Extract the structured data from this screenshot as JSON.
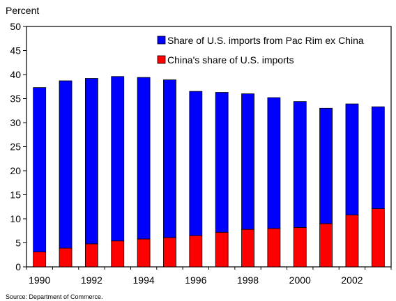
{
  "chart_data": {
    "type": "bar",
    "stacked": true,
    "title": "",
    "xlabel": "",
    "ylabel": "Percent",
    "ylim": [
      0,
      50
    ],
    "y_ticks": [
      0,
      5,
      10,
      15,
      20,
      25,
      30,
      35,
      40,
      45,
      50
    ],
    "x": [
      1990,
      1991,
      1992,
      1993,
      1994,
      1995,
      1996,
      1997,
      1998,
      1999,
      2000,
      2001,
      2002,
      2003
    ],
    "x_tick_labels": [
      "1990",
      "1992",
      "1994",
      "1996",
      "1998",
      "2000",
      "2002"
    ],
    "x_tick_years": [
      1990,
      1992,
      1994,
      1996,
      1998,
      2000,
      2002
    ],
    "series": [
      {
        "name": "China's share of U.S. imports",
        "color": "#ff0000",
        "values": [
          3.1,
          3.9,
          4.8,
          5.4,
          5.8,
          6.1,
          6.5,
          7.2,
          7.8,
          8.0,
          8.2,
          9.0,
          10.8,
          12.1
        ]
      },
      {
        "name": "Share of U.S. imports from Pac Rim ex China",
        "color": "#0000ff",
        "values": [
          34.2,
          34.8,
          34.4,
          34.2,
          33.6,
          32.8,
          30.0,
          29.1,
          28.2,
          27.2,
          26.2,
          24.0,
          23.1,
          21.2
        ]
      }
    ],
    "legend": {
      "placement": "top-right",
      "order": [
        "Share of U.S. imports from Pac Rim ex China",
        "China's share of U.S. imports"
      ]
    },
    "grid": false,
    "source": "Source: Department of Commerce."
  }
}
